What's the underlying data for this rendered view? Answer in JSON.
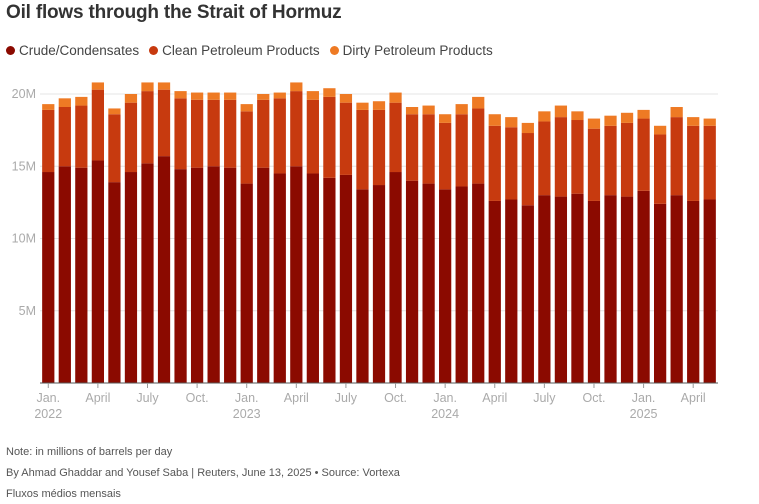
{
  "title": "Oil flows through the Strait of Hormuz",
  "legend": [
    {
      "label": "Crude/Condensates",
      "color": "#8b0a00"
    },
    {
      "label": "Clean Petroleum Products",
      "color": "#c73a0f"
    },
    {
      "label": "Dirty Petroleum Products",
      "color": "#ee7a24"
    }
  ],
  "footer": {
    "note": "Note: in millions of barrels per day",
    "byline": "By Ahmad Ghaddar and Yousef Saba | Reuters, June 13, 2025 • Source: Vortexa",
    "caption": "Fluxos médios mensais"
  },
  "chart_data": {
    "type": "bar",
    "stacked": true,
    "ylim": [
      0,
      20
    ],
    "yticks": [
      {
        "value": 5,
        "label": "5M"
      },
      {
        "value": 10,
        "label": "10M"
      },
      {
        "value": 15,
        "label": "15M"
      },
      {
        "value": 20,
        "label": "20M"
      }
    ],
    "xticks": [
      {
        "index": 0,
        "label": "Jan.",
        "year": "2022"
      },
      {
        "index": 3,
        "label": "April",
        "year": ""
      },
      {
        "index": 6,
        "label": "July",
        "year": ""
      },
      {
        "index": 9,
        "label": "Oct.",
        "year": ""
      },
      {
        "index": 12,
        "label": "Jan.",
        "year": "2023"
      },
      {
        "index": 15,
        "label": "April",
        "year": ""
      },
      {
        "index": 18,
        "label": "July",
        "year": ""
      },
      {
        "index": 21,
        "label": "Oct.",
        "year": ""
      },
      {
        "index": 24,
        "label": "Jan.",
        "year": "2024"
      },
      {
        "index": 27,
        "label": "April",
        "year": ""
      },
      {
        "index": 30,
        "label": "July",
        "year": ""
      },
      {
        "index": 33,
        "label": "Oct.",
        "year": ""
      },
      {
        "index": 36,
        "label": "Jan.",
        "year": "2025"
      },
      {
        "index": 39,
        "label": "April",
        "year": ""
      }
    ],
    "categories": [
      "2022-01",
      "2022-02",
      "2022-03",
      "2022-04",
      "2022-05",
      "2022-06",
      "2022-07",
      "2022-08",
      "2022-09",
      "2022-10",
      "2022-11",
      "2022-12",
      "2023-01",
      "2023-02",
      "2023-03",
      "2023-04",
      "2023-05",
      "2023-06",
      "2023-07",
      "2023-08",
      "2023-09",
      "2023-10",
      "2023-11",
      "2023-12",
      "2024-01",
      "2024-02",
      "2024-03",
      "2024-04",
      "2024-05",
      "2024-06",
      "2024-07",
      "2024-08",
      "2024-09",
      "2024-10",
      "2024-11",
      "2024-12",
      "2025-01",
      "2025-02",
      "2025-03",
      "2025-04",
      "2025-05"
    ],
    "series": [
      {
        "name": "Crude/Condensates",
        "color": "#8b0a00",
        "values": [
          14.6,
          15.0,
          14.9,
          15.4,
          13.9,
          14.6,
          15.2,
          15.7,
          14.8,
          14.9,
          15.0,
          14.9,
          13.8,
          14.9,
          14.5,
          15.0,
          14.5,
          14.2,
          14.4,
          13.4,
          13.7,
          14.6,
          14.0,
          13.8,
          13.4,
          13.6,
          13.8,
          12.6,
          12.7,
          12.3,
          13.0,
          12.9,
          13.1,
          12.6,
          13.0,
          12.9,
          13.3,
          12.4,
          13.0,
          12.6,
          12.7
        ]
      },
      {
        "name": "Clean Petroleum Products",
        "color": "#c73a0f",
        "values": [
          4.3,
          4.1,
          4.3,
          4.9,
          4.7,
          4.8,
          5.0,
          4.6,
          4.9,
          4.7,
          4.6,
          4.7,
          5.0,
          4.7,
          5.2,
          5.2,
          5.1,
          5.6,
          5.0,
          5.5,
          5.2,
          4.8,
          4.6,
          4.8,
          4.6,
          5.0,
          5.2,
          5.2,
          5.0,
          5.0,
          5.1,
          5.5,
          5.1,
          5.0,
          4.8,
          5.1,
          5.0,
          4.8,
          5.4,
          5.2,
          5.1
        ]
      },
      {
        "name": "Dirty Petroleum Products",
        "color": "#ee7a24",
        "values": [
          0.4,
          0.6,
          0.6,
          0.5,
          0.4,
          0.6,
          0.6,
          0.5,
          0.5,
          0.5,
          0.5,
          0.5,
          0.5,
          0.4,
          0.4,
          0.6,
          0.6,
          0.6,
          0.6,
          0.5,
          0.6,
          0.7,
          0.5,
          0.6,
          0.6,
          0.7,
          0.8,
          0.8,
          0.7,
          0.7,
          0.7,
          0.8,
          0.6,
          0.7,
          0.7,
          0.7,
          0.6,
          0.6,
          0.7,
          0.6,
          0.5
        ]
      }
    ]
  }
}
